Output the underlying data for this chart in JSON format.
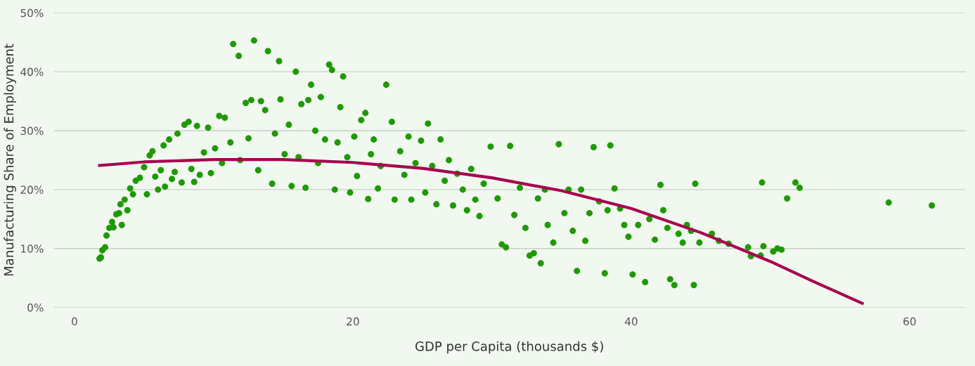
{
  "chart_data": {
    "type": "scatter",
    "xlabel": "GDP per Capita (thousands $)",
    "ylabel": "Manufacturing Share of Employment",
    "xlim": [
      -1.5,
      64
    ],
    "ylim": [
      0,
      50
    ],
    "xticks": [
      0,
      20,
      40,
      60
    ],
    "yticks": [
      {
        "value": 0,
        "label": "0%"
      },
      {
        "value": 10,
        "label": "10%"
      },
      {
        "value": 20,
        "label": "20%"
      },
      {
        "value": 30,
        "label": "30%"
      },
      {
        "value": 40,
        "label": "40%"
      },
      {
        "value": 50,
        "label": "50%"
      }
    ],
    "grid": "y",
    "marker": "circle",
    "series": [
      {
        "color": "#1f9900",
        "x": [
          1.8,
          1.9,
          2.0,
          2.2,
          2.3,
          2.5,
          2.7,
          2.8,
          3.0,
          3.2,
          3.3,
          3.4,
          3.6,
          3.8,
          4.0,
          4.2,
          4.4,
          4.7,
          5.0,
          5.2,
          5.4,
          5.6,
          5.8,
          6.0,
          6.2,
          6.4,
          6.5,
          6.8,
          7.0,
          7.2,
          7.4,
          7.7,
          7.9,
          8.2,
          8.4,
          8.6,
          8.8,
          9.0,
          9.3,
          9.6,
          9.8,
          10.1,
          10.4,
          10.6,
          10.8,
          11.2,
          11.4,
          11.8,
          11.9,
          12.3,
          12.5,
          12.7,
          12.9,
          13.2,
          13.4,
          13.7,
          13.9,
          14.2,
          14.4,
          14.7,
          14.8,
          15.1,
          15.4,
          15.6,
          15.9,
          16.1,
          16.3,
          16.6,
          16.8,
          17.0,
          17.3,
          17.5,
          17.7,
          18.0,
          18.3,
          18.5,
          18.7,
          18.9,
          19.1,
          19.3,
          19.6,
          19.8,
          20.1,
          20.3,
          20.6,
          20.9,
          21.1,
          21.3,
          21.5,
          21.8,
          22.0,
          22.4,
          22.8,
          23.0,
          23.4,
          23.7,
          24.0,
          24.2,
          24.5,
          24.9,
          25.2,
          25.4,
          25.7,
          26.0,
          26.3,
          26.6,
          26.9,
          27.2,
          27.5,
          27.9,
          28.2,
          28.5,
          28.8,
          29.1,
          29.4,
          29.9,
          30.4,
          30.7,
          31.0,
          31.3,
          31.6,
          32.0,
          32.4,
          32.7,
          33.0,
          33.3,
          33.5,
          33.8,
          34.0,
          34.4,
          34.8,
          35.2,
          35.5,
          35.8,
          36.1,
          36.4,
          36.7,
          37.0,
          37.3,
          37.7,
          38.1,
          38.3,
          38.5,
          38.8,
          39.2,
          39.5,
          39.8,
          40.1,
          40.5,
          41.0,
          41.3,
          41.7,
          42.1,
          42.3,
          42.6,
          42.8,
          43.1,
          43.4,
          43.7,
          44.0,
          44.3,
          44.5,
          44.6,
          44.9,
          45.8,
          46.3,
          47.0,
          48.4,
          48.6,
          49.3,
          49.4,
          49.5,
          50.2,
          50.5,
          50.8,
          51.2,
          51.8,
          52.1,
          58.5,
          61.6
        ],
        "values": [
          8.3,
          8.5,
          9.7,
          10.2,
          12.2,
          13.5,
          14.5,
          13.6,
          15.8,
          16,
          17.5,
          14,
          18.3,
          16.5,
          20.2,
          19.2,
          21.5,
          22,
          23.8,
          19.2,
          25.8,
          26.5,
          22.2,
          20,
          23.3,
          27.5,
          20.5,
          28.5,
          21.8,
          23,
          29.5,
          21.2,
          31,
          31.5,
          23.5,
          21.3,
          30.8,
          22.5,
          26.3,
          30.5,
          22.8,
          27,
          32.5,
          24.5,
          32.2,
          28,
          44.7,
          42.7,
          25,
          34.7,
          28.7,
          35.2,
          45.3,
          23.3,
          35,
          33.5,
          43.5,
          21,
          29.5,
          41.8,
          35.3,
          26,
          31,
          20.6,
          40,
          25.5,
          34.5,
          20.3,
          35.2,
          37.8,
          30,
          24.5,
          35.7,
          28.5,
          41.2,
          40.3,
          20,
          28,
          34,
          39.2,
          25.5,
          19.5,
          29,
          22.3,
          31.8,
          33,
          18.4,
          26,
          28.5,
          20.2,
          24,
          37.8,
          31.5,
          18.3,
          26.5,
          22.5,
          29,
          18.3,
          24.5,
          28.3,
          19.5,
          31.2,
          24,
          17.5,
          28.5,
          21.5,
          25,
          17.3,
          22.7,
          20,
          16.5,
          23.5,
          18.3,
          15.5,
          21,
          27.3,
          18.5,
          10.7,
          10.2,
          27.4,
          15.7,
          20.3,
          13.5,
          8.8,
          9.2,
          18.5,
          7.5,
          20,
          14,
          11,
          27.7,
          16,
          20,
          13,
          6.2,
          20,
          11.3,
          16,
          27.2,
          18,
          5.8,
          16.5,
          27.5,
          20.2,
          16.8,
          14,
          12,
          5.6,
          14,
          4.3,
          15,
          11.5,
          20.8,
          16.5,
          13.5,
          4.8,
          3.8,
          12.5,
          11,
          14,
          13,
          3.8,
          21,
          11,
          12.5,
          11.3,
          10.8,
          10.2,
          8.7,
          8.8,
          21.2,
          10.4,
          9.5,
          10,
          9.8,
          18.5,
          21.2,
          20.3,
          17.8,
          17.3
        ]
      },
      {
        "type": "line",
        "color": "#a8004f",
        "marker": "none",
        "line_style": "solid",
        "x": [
          1.8,
          5,
          10,
          15,
          20,
          25,
          30,
          35,
          40,
          45,
          50,
          53,
          56.6
        ],
        "values": [
          24.1,
          24.7,
          25.1,
          25.1,
          24.6,
          23.6,
          22.0,
          19.8,
          16.8,
          12.7,
          7.8,
          4.5,
          0.7
        ]
      }
    ]
  }
}
